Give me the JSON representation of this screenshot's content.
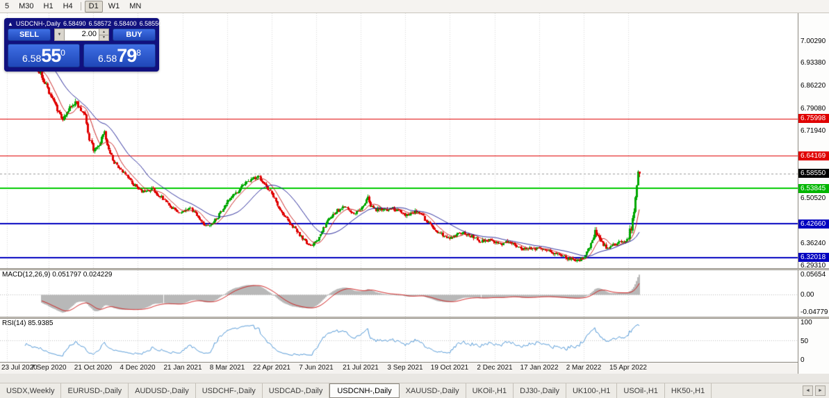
{
  "theme": {
    "panel_navy": "#11117f",
    "btn_top": "#3f6fe4",
    "btn_bottom": "#1f47b8"
  },
  "toolbar": {
    "timeframes": [
      "5",
      "M30",
      "H1",
      "H4",
      "D1",
      "W1",
      "MN"
    ],
    "active": "D1",
    "separator_after": "H4"
  },
  "icons": {
    "collapse": "▲",
    "volume_dropdown": "▼",
    "spinner_up": "▲",
    "spinner_down": "▼",
    "tab_scroll_left": "◄",
    "tab_scroll_right": "►"
  },
  "info_bar": {
    "symbol": "USDCNH-,Daily",
    "open": "6.58490",
    "high": "6.58572",
    "low": "6.58400",
    "close": "6.58550"
  },
  "trade_panel": {
    "sell_label": "SELL",
    "buy_label": "BUY",
    "volume": "2.00",
    "sell_price": {
      "small": "6.58",
      "big": "55",
      "sup": "0"
    },
    "buy_price": {
      "small": "6.58",
      "big": "79",
      "sup": "8"
    }
  },
  "price_axis": {
    "regular": [
      "7.00290",
      "6.93380",
      "6.86220",
      "6.79080",
      "6.71940",
      "6.50520",
      "6.36240",
      "6.29310"
    ],
    "highlighted": [
      {
        "value": "6.75998",
        "color": "#e00000"
      },
      {
        "value": "6.64169",
        "color": "#e00000"
      },
      {
        "value": "6.58550",
        "color": "#000000"
      },
      {
        "value": "6.53845",
        "color": "#00b600"
      },
      {
        "value": "6.42660",
        "color": "#0000c0"
      },
      {
        "value": "6.32018",
        "color": "#0000c0"
      }
    ]
  },
  "tab_bar": {
    "tabs": [
      "USDX,Weekly",
      "EURUSD-,Daily",
      "AUDUSD-,Daily",
      "USDCHF-,Daily",
      "USDCAD-,Daily",
      "USDCNH-,Daily",
      "XAUUSD-,Daily",
      "UKOil-,H1",
      "DJ30-,Daily",
      "UK100-,H1",
      "USOil-,H1",
      "HK50-,H1"
    ],
    "active": "USDCNH-,Daily"
  },
  "chart_data": {
    "type": "candlestick",
    "symbol": "USDCNH-",
    "timeframe": "Daily",
    "ohlc_current": {
      "open": 6.5849,
      "high": 6.58572,
      "low": 6.584,
      "close": 6.5855
    },
    "bid_price": 6.5855,
    "ask_price": 6.58798,
    "visible_price_range": {
      "top": 7.093,
      "bottom": 6.2865
    },
    "x_labels": [
      "23 Jul 2020",
      "7 Sep 2020",
      "21 Oct 2020",
      "4 Dec 2020",
      "21 Jan 2021",
      "8 Mar 2021",
      "22 Apr 2021",
      "7 Jun 2021",
      "21 Jul 2021",
      "3 Sep 2021",
      "19 Oct 2021",
      "2 Dec 2021",
      "17 Jan 2022",
      "2 Mar 2022",
      "15 Apr 2022"
    ],
    "candle_count": 456,
    "bars_per_label": 32,
    "horizontal_lines": [
      {
        "price": 6.75998,
        "color": "#e00000",
        "width": 1
      },
      {
        "price": 6.64169,
        "color": "#e00000",
        "width": 1
      },
      {
        "price": 6.53845,
        "color": "#00cc00",
        "width": 2
      },
      {
        "price": 6.4266,
        "color": "#0000c0",
        "width": 2
      },
      {
        "price": 6.32018,
        "color": "#0000c0",
        "width": 2
      }
    ],
    "price_path_keypoints": [
      [
        0.0,
        6.978
      ],
      [
        0.004,
        6.986
      ],
      [
        0.009,
        6.994
      ],
      [
        0.014,
        6.999
      ],
      [
        0.022,
        6.972
      ],
      [
        0.03,
        6.952
      ],
      [
        0.04,
        6.93
      ],
      [
        0.05,
        6.912
      ],
      [
        0.058,
        6.89
      ],
      [
        0.068,
        6.842
      ],
      [
        0.076,
        6.815
      ],
      [
        0.084,
        6.78
      ],
      [
        0.09,
        6.758
      ],
      [
        0.096,
        6.772
      ],
      [
        0.103,
        6.798
      ],
      [
        0.11,
        6.812
      ],
      [
        0.118,
        6.792
      ],
      [
        0.126,
        6.77
      ],
      [
        0.13,
        6.708
      ],
      [
        0.1385,
        6.662
      ],
      [
        0.146,
        6.672
      ],
      [
        0.152,
        6.7
      ],
      [
        0.156,
        6.718
      ],
      [
        0.161,
        6.668
      ],
      [
        0.17,
        6.625
      ],
      [
        0.18,
        6.6
      ],
      [
        0.19,
        6.58
      ],
      [
        0.2,
        6.558
      ],
      [
        0.209,
        6.535
      ],
      [
        0.22,
        6.528
      ],
      [
        0.232,
        6.54
      ],
      [
        0.24,
        6.52
      ],
      [
        0.25,
        6.505
      ],
      [
        0.26,
        6.48
      ],
      [
        0.27,
        6.462
      ],
      [
        0.279,
        6.468
      ],
      [
        0.29,
        6.478
      ],
      [
        0.3,
        6.455
      ],
      [
        0.31,
        6.432
      ],
      [
        0.318,
        6.415
      ],
      [
        0.326,
        6.428
      ],
      [
        0.335,
        6.452
      ],
      [
        0.35,
        6.498
      ],
      [
        0.36,
        6.52
      ],
      [
        0.37,
        6.54
      ],
      [
        0.38,
        6.558
      ],
      [
        0.39,
        6.572
      ],
      [
        0.398,
        6.576
      ],
      [
        0.406,
        6.56
      ],
      [
        0.42,
        6.52
      ],
      [
        0.432,
        6.47
      ],
      [
        0.444,
        6.438
      ],
      [
        0.456,
        6.412
      ],
      [
        0.468,
        6.38
      ],
      [
        0.481,
        6.354
      ],
      [
        0.49,
        6.372
      ],
      [
        0.498,
        6.4
      ],
      [
        0.508,
        6.438
      ],
      [
        0.518,
        6.462
      ],
      [
        0.53,
        6.478
      ],
      [
        0.542,
        6.47
      ],
      [
        0.552,
        6.462
      ],
      [
        0.56,
        6.468
      ],
      [
        0.567,
        6.49
      ],
      [
        0.5715,
        6.512
      ],
      [
        0.576,
        6.482
      ],
      [
        0.584,
        6.47
      ],
      [
        0.592,
        6.476
      ],
      [
        0.6,
        6.47
      ],
      [
        0.61,
        6.478
      ],
      [
        0.62,
        6.466
      ],
      [
        0.631,
        6.452
      ],
      [
        0.64,
        6.46
      ],
      [
        0.65,
        6.468
      ],
      [
        0.66,
        6.446
      ],
      [
        0.67,
        6.424
      ],
      [
        0.68,
        6.404
      ],
      [
        0.69,
        6.392
      ],
      [
        0.701,
        6.382
      ],
      [
        0.71,
        6.392
      ],
      [
        0.72,
        6.4
      ],
      [
        0.73,
        6.392
      ],
      [
        0.74,
        6.382
      ],
      [
        0.75,
        6.372
      ],
      [
        0.76,
        6.376
      ],
      [
        0.771,
        6.368
      ],
      [
        0.782,
        6.362
      ],
      [
        0.792,
        6.372
      ],
      [
        0.802,
        6.362
      ],
      [
        0.812,
        6.352
      ],
      [
        0.822,
        6.346
      ],
      [
        0.832,
        6.35
      ],
      [
        0.842,
        6.348
      ],
      [
        0.852,
        6.342
      ],
      [
        0.862,
        6.334
      ],
      [
        0.872,
        6.326
      ],
      [
        0.882,
        6.32
      ],
      [
        0.892,
        6.314
      ],
      [
        0.902,
        6.31
      ],
      [
        0.912,
        6.322
      ],
      [
        0.918,
        6.345
      ],
      [
        0.924,
        6.372
      ],
      [
        0.93,
        6.402
      ],
      [
        0.936,
        6.378
      ],
      [
        0.944,
        6.358
      ],
      [
        0.952,
        6.35
      ],
      [
        0.96,
        6.362
      ],
      [
        0.968,
        6.372
      ],
      [
        0.976,
        6.368
      ],
      [
        0.982,
        6.378
      ],
      [
        0.986,
        6.41
      ],
      [
        0.99,
        6.452
      ],
      [
        0.9925,
        6.502
      ],
      [
        0.995,
        6.548
      ],
      [
        0.997,
        6.585
      ],
      [
        0.9985,
        6.604
      ],
      [
        0.9993,
        6.6
      ],
      [
        1.0,
        6.5855
      ]
    ],
    "indicators": {
      "ma_fast": {
        "type": "SMA",
        "period": 10,
        "color": "#cc2222"
      },
      "ma_slow": {
        "type": "SMA",
        "period": 30,
        "color": "#26269a"
      },
      "macd": {
        "label": "MACD(12,26,9) 0.051797 0.024229",
        "fast": 12,
        "slow": 26,
        "signal": 9,
        "value": 0.051797,
        "signal_value": 0.024229,
        "axis_labels": [
          "0.05654",
          "0.00",
          "-0.04779"
        ],
        "histogram_color": "#b8b8b8",
        "signal_color": "#d02020"
      },
      "rsi": {
        "label": "RSI(14) 85.9385",
        "period": 14,
        "value": 85.9385,
        "axis_labels": [
          "100",
          "50",
          "0"
        ],
        "line_color": "#4f97d7"
      }
    },
    "colors": {
      "background": "#ffffff",
      "grid": "#d8d8d8",
      "up": "#00a800",
      "down": "#e00000",
      "bid_line": "#9a9a9a"
    }
  }
}
